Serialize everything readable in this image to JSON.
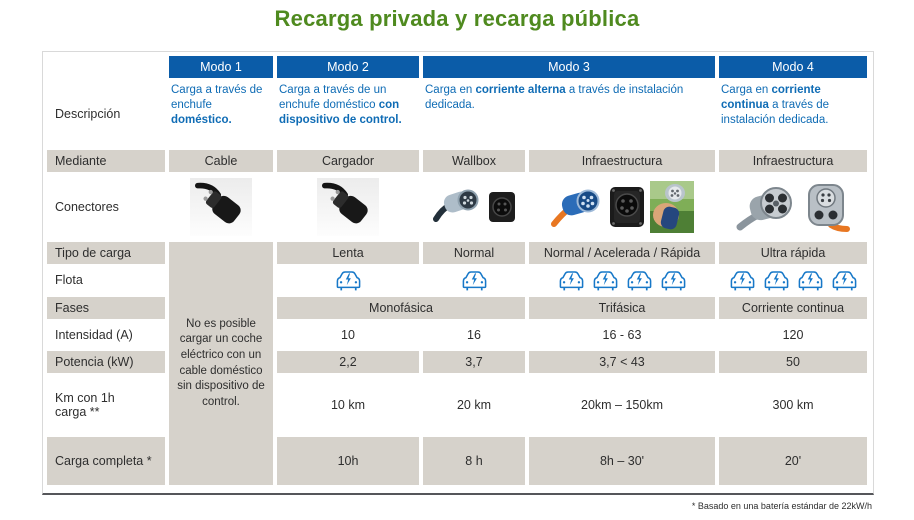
{
  "title": "Recarga privada y recarga pública",
  "footnote": "* Basado en una batería estándar de 22kW/h",
  "colors": {
    "title_green": "#4f8a1f",
    "header_blue": "#0b5ca8",
    "description_blue": "#0f6cb5",
    "cell_gray": "#d6d2cb",
    "car_icon_blue": "#1778c8"
  },
  "table": {
    "headers": {
      "modo1": "Modo 1",
      "modo2": "Modo 2",
      "modo3": "Modo 3",
      "modo4": "Modo 4"
    },
    "row_labels": {
      "descripcion": "Descripción",
      "mediante": "Mediante",
      "conectores": "Conectores",
      "tipo": "Tipo de carga",
      "flota": "Flota",
      "fases": "Fases",
      "intensidad": "Intensidad (A)",
      "potencia": "Potencia (kW)",
      "km": "Km con 1h carga **",
      "carga": "Carga completa *"
    },
    "descriptions": {
      "modo1": [
        {
          "t": "Carga a través de enchufe "
        },
        {
          "t": "doméstico.",
          "b": true
        }
      ],
      "modo2": [
        {
          "t": "Carga a través de un enchufe doméstico "
        },
        {
          "t": "con dispositivo de control.",
          "b": true
        }
      ],
      "modo3": [
        {
          "t": "Carga en "
        },
        {
          "t": "corriente alterna",
          "b": true
        },
        {
          "t": " a través de instalación dedicada."
        }
      ],
      "modo4": [
        {
          "t": "Carga en "
        },
        {
          "t": "corriente continua",
          "b": true
        },
        {
          "t": " a través de instalación dedicada."
        }
      ]
    },
    "mediante": {
      "modo1": "Cable",
      "modo2": "Cargador",
      "wallbox": "Wallbox",
      "infra": "Infraestructura",
      "modo4": "Infraestructura"
    },
    "modo1_note": "No es posible cargar un coche eléctrico con un cable doméstico sin dispositivo de control.",
    "tipo_carga": {
      "modo2": "Lenta",
      "wallbox": "Normal",
      "infra": "Normal / Acelerada / Rápida",
      "modo4": "Ultra rápida"
    },
    "flota_counts": {
      "modo2": 1,
      "wallbox": 1,
      "infra": 4,
      "modo4": 4
    },
    "fases": {
      "monofasica": "Monofásica",
      "trifasica": "Trifásica",
      "cc": "Corriente continua"
    },
    "intensidad": {
      "modo2": "10",
      "wallbox": "16",
      "infra": "16 - 63",
      "modo4": "120"
    },
    "potencia": {
      "modo2": "2,2",
      "wallbox": "3,7",
      "infra": "3,7 < 43",
      "modo4": "50"
    },
    "km_1h": {
      "modo2": "10 km",
      "wallbox": "20 km",
      "infra": "20km – 150km",
      "modo4": "300 km"
    },
    "carga_completa": {
      "modo2": "10h",
      "wallbox": "8 h",
      "infra": "8h – 30'",
      "modo4": "20'"
    }
  }
}
